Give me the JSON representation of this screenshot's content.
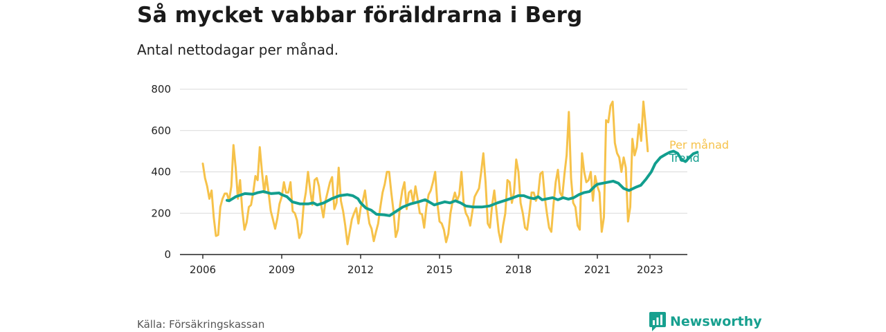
{
  "chart_data": {
    "type": "line",
    "title": "Så mycket vabbar föräldrarna i Berg",
    "subtitle": "Antal nettodagar per månad.",
    "xlabel": "",
    "ylabel": "",
    "ylim": [
      0,
      800
    ],
    "yticks": [
      "0",
      "200",
      "400",
      "600",
      "800"
    ],
    "xticks": [
      "2006",
      "2009",
      "2012",
      "2015",
      "2018",
      "2021",
      "2023"
    ],
    "xtick_values": [
      2006,
      2009,
      2012,
      2015,
      2018,
      2021,
      2023
    ],
    "xlim": [
      2005.2,
      2024.2
    ],
    "series": [
      {
        "name": "Per månad",
        "color": "#f6c24a",
        "x_start": 2006.0,
        "step": 0.08333,
        "values": [
          440,
          370,
          330,
          270,
          310,
          180,
          90,
          95,
          230,
          270,
          295,
          295,
          260,
          330,
          530,
          420,
          270,
          360,
          215,
          120,
          155,
          230,
          240,
          300,
          380,
          360,
          520,
          400,
          300,
          380,
          300,
          210,
          170,
          125,
          175,
          245,
          280,
          350,
          300,
          300,
          350,
          210,
          200,
          165,
          80,
          105,
          240,
          300,
          400,
          310,
          240,
          360,
          370,
          330,
          240,
          180,
          260,
          305,
          350,
          375,
          220,
          250,
          420,
          260,
          210,
          140,
          50,
          110,
          170,
          200,
          225,
          150,
          225,
          260,
          310,
          220,
          150,
          125,
          65,
          110,
          150,
          230,
          300,
          340,
          400,
          400,
          300,
          210,
          85,
          120,
          240,
          310,
          350,
          220,
          300,
          310,
          250,
          330,
          270,
          200,
          195,
          130,
          230,
          290,
          310,
          350,
          400,
          250,
          160,
          150,
          120,
          60,
          100,
          200,
          260,
          300,
          260,
          290,
          400,
          250,
          200,
          180,
          140,
          210,
          280,
          300,
          320,
          400,
          490,
          350,
          150,
          130,
          240,
          310,
          210,
          110,
          60,
          140,
          200,
          360,
          350,
          250,
          300,
          460,
          400,
          250,
          200,
          130,
          120,
          200,
          300,
          300,
          260,
          290,
          390,
          400,
          280,
          200,
          130,
          110,
          240,
          350,
          410,
          300,
          280,
          390,
          480,
          690,
          370,
          250,
          230,
          140,
          120,
          490,
          400,
          350,
          360,
          400,
          260,
          380,
          330,
          300,
          110,
          180,
          650,
          640,
          720,
          740,
          540,
          490,
          470,
          400,
          470,
          420,
          160,
          230,
          560,
          480,
          520,
          630,
          550,
          740,
          630,
          500
        ],
        "labels_note": "monthly values"
      },
      {
        "name": "Trend",
        "color": "#129e8e",
        "points": [
          [
            2006.92,
            262
          ],
          [
            2007.0,
            260
          ],
          [
            2007.25,
            280
          ],
          [
            2007.6,
            295
          ],
          [
            2007.9,
            292
          ],
          [
            2008.1,
            300
          ],
          [
            2008.3,
            305
          ],
          [
            2008.6,
            295
          ],
          [
            2008.9,
            298
          ],
          [
            2009.0,
            290
          ],
          [
            2009.2,
            280
          ],
          [
            2009.4,
            255
          ],
          [
            2009.7,
            245
          ],
          [
            2010.0,
            245
          ],
          [
            2010.2,
            250
          ],
          [
            2010.35,
            240
          ],
          [
            2010.6,
            250
          ],
          [
            2010.9,
            270
          ],
          [
            2011.2,
            285
          ],
          [
            2011.5,
            290
          ],
          [
            2011.7,
            285
          ],
          [
            2011.9,
            270
          ],
          [
            2012.0,
            250
          ],
          [
            2012.2,
            225
          ],
          [
            2012.4,
            215
          ],
          [
            2012.6,
            195
          ],
          [
            2012.9,
            192
          ],
          [
            2013.1,
            188
          ],
          [
            2013.3,
            205
          ],
          [
            2013.6,
            230
          ],
          [
            2013.9,
            245
          ],
          [
            2014.2,
            255
          ],
          [
            2014.45,
            265
          ],
          [
            2014.6,
            255
          ],
          [
            2014.8,
            240
          ],
          [
            2015.0,
            248
          ],
          [
            2015.2,
            255
          ],
          [
            2015.4,
            250
          ],
          [
            2015.6,
            260
          ],
          [
            2015.8,
            250
          ],
          [
            2016.0,
            235
          ],
          [
            2016.3,
            230
          ],
          [
            2016.6,
            230
          ],
          [
            2016.9,
            235
          ],
          [
            2017.2,
            250
          ],
          [
            2017.5,
            262
          ],
          [
            2017.8,
            275
          ],
          [
            2018.0,
            285
          ],
          [
            2018.2,
            285
          ],
          [
            2018.4,
            275
          ],
          [
            2018.6,
            270
          ],
          [
            2018.75,
            280
          ],
          [
            2018.9,
            265
          ],
          [
            2019.1,
            270
          ],
          [
            2019.3,
            275
          ],
          [
            2019.5,
            265
          ],
          [
            2019.7,
            275
          ],
          [
            2019.9,
            268
          ],
          [
            2020.1,
            275
          ],
          [
            2020.3,
            290
          ],
          [
            2020.5,
            300
          ],
          [
            2020.7,
            305
          ],
          [
            2020.9,
            330
          ],
          [
            2021.0,
            340
          ],
          [
            2021.2,
            345
          ],
          [
            2021.4,
            350
          ],
          [
            2021.6,
            355
          ],
          [
            2021.8,
            345
          ],
          [
            2022.0,
            320
          ],
          [
            2022.2,
            310
          ],
          [
            2022.45,
            325
          ],
          [
            2022.65,
            335
          ],
          [
            2022.85,
            365
          ],
          [
            2023.05,
            400
          ],
          [
            2023.2,
            440
          ],
          [
            2023.4,
            470
          ],
          [
            2023.6,
            485
          ],
          [
            2023.75,
            495
          ],
          [
            2023.9,
            500
          ],
          [
            2024.05,
            490
          ],
          [
            2024.2,
            460
          ],
          [
            2024.35,
            450
          ],
          [
            2024.5,
            470
          ],
          [
            2024.65,
            488
          ],
          [
            2024.8,
            495
          ]
        ]
      }
    ],
    "legend": [
      "Per månad",
      "Trend"
    ]
  },
  "source": "Källa: Försäkringskassan",
  "brand": {
    "name": "Newsworthy",
    "icon": "newsworthy-logo-icon",
    "color": "#17a08f"
  }
}
